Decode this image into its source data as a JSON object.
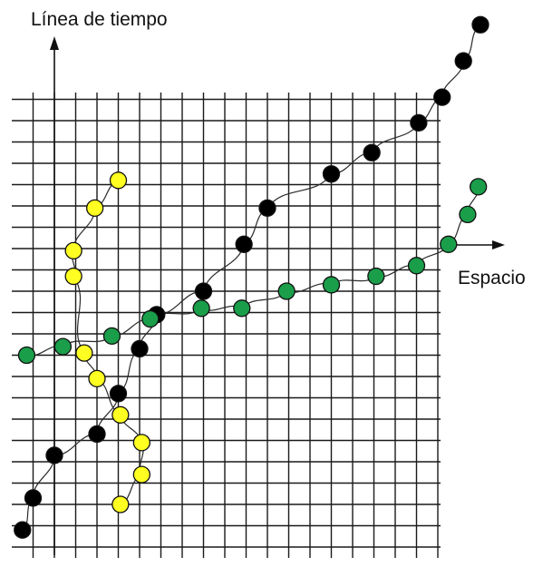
{
  "labels": {
    "time_axis": "Línea de tiempo",
    "space_axis": "Espacio"
  },
  "colors": {
    "black": "#000000",
    "green": "#1a9e4a",
    "yellow": "#ffff22"
  },
  "worldlines": [
    {
      "color": "black",
      "points": [
        [
          0.5,
          0.8
        ],
        [
          1,
          2.3
        ],
        [
          2,
          4.3
        ],
        [
          4,
          5.3
        ],
        [
          5,
          7.2
        ],
        [
          6,
          9.3
        ],
        [
          6.8,
          10.9
        ],
        [
          9,
          12
        ],
        [
          10.9,
          14.2
        ],
        [
          12,
          15.9
        ],
        [
          15,
          17.5
        ],
        [
          16.9,
          18.5
        ],
        [
          19.1,
          19.9
        ],
        [
          20.2,
          21.1
        ],
        [
          21.2,
          22.8
        ],
        [
          22,
          24.5
        ]
      ]
    },
    {
      "color": "green",
      "points": [
        [
          0.7,
          9
        ],
        [
          2.4,
          9.4
        ],
        [
          4.7,
          9.9
        ],
        [
          6.5,
          10.7
        ],
        [
          8.9,
          11.2
        ],
        [
          10.8,
          11.2
        ],
        [
          12.9,
          12
        ],
        [
          15,
          12.3
        ],
        [
          17.1,
          12.7
        ],
        [
          19,
          13.2
        ],
        [
          20.5,
          14.2
        ],
        [
          21.4,
          15.6
        ],
        [
          21.9,
          16.9
        ]
      ]
    },
    {
      "color": "yellow",
      "points": [
        [
          5,
          17.2
        ],
        [
          3.9,
          15.9
        ],
        [
          2.9,
          13.9
        ],
        [
          2.9,
          12.7
        ],
        [
          3.4,
          9.1
        ],
        [
          4,
          7.9
        ],
        [
          5.1,
          6.2
        ],
        [
          6.1,
          4.9
        ],
        [
          6.1,
          3.4
        ],
        [
          5.1,
          2
        ]
      ]
    }
  ]
}
